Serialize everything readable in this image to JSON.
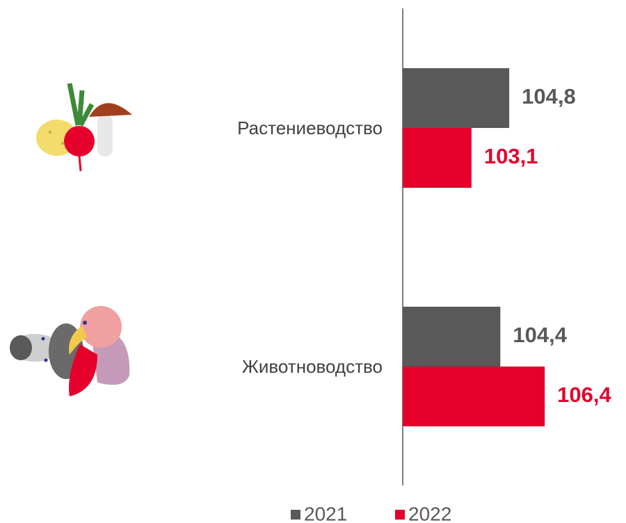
{
  "chart_data": {
    "type": "barh",
    "categories": [
      "Растениеводство",
      "Животноводство"
    ],
    "series": [
      {
        "name": "2021",
        "color": "#595959",
        "values": [
          104.8,
          104.4
        ],
        "value_labels": [
          "104,8",
          "104,4"
        ]
      },
      {
        "name": "2022",
        "color": "#e4002b",
        "values": [
          103.1,
          106.4
        ],
        "value_labels": [
          "103,1",
          "106,4"
        ]
      }
    ],
    "xlim": [
      100,
      110
    ],
    "legend": "bottom"
  }
}
